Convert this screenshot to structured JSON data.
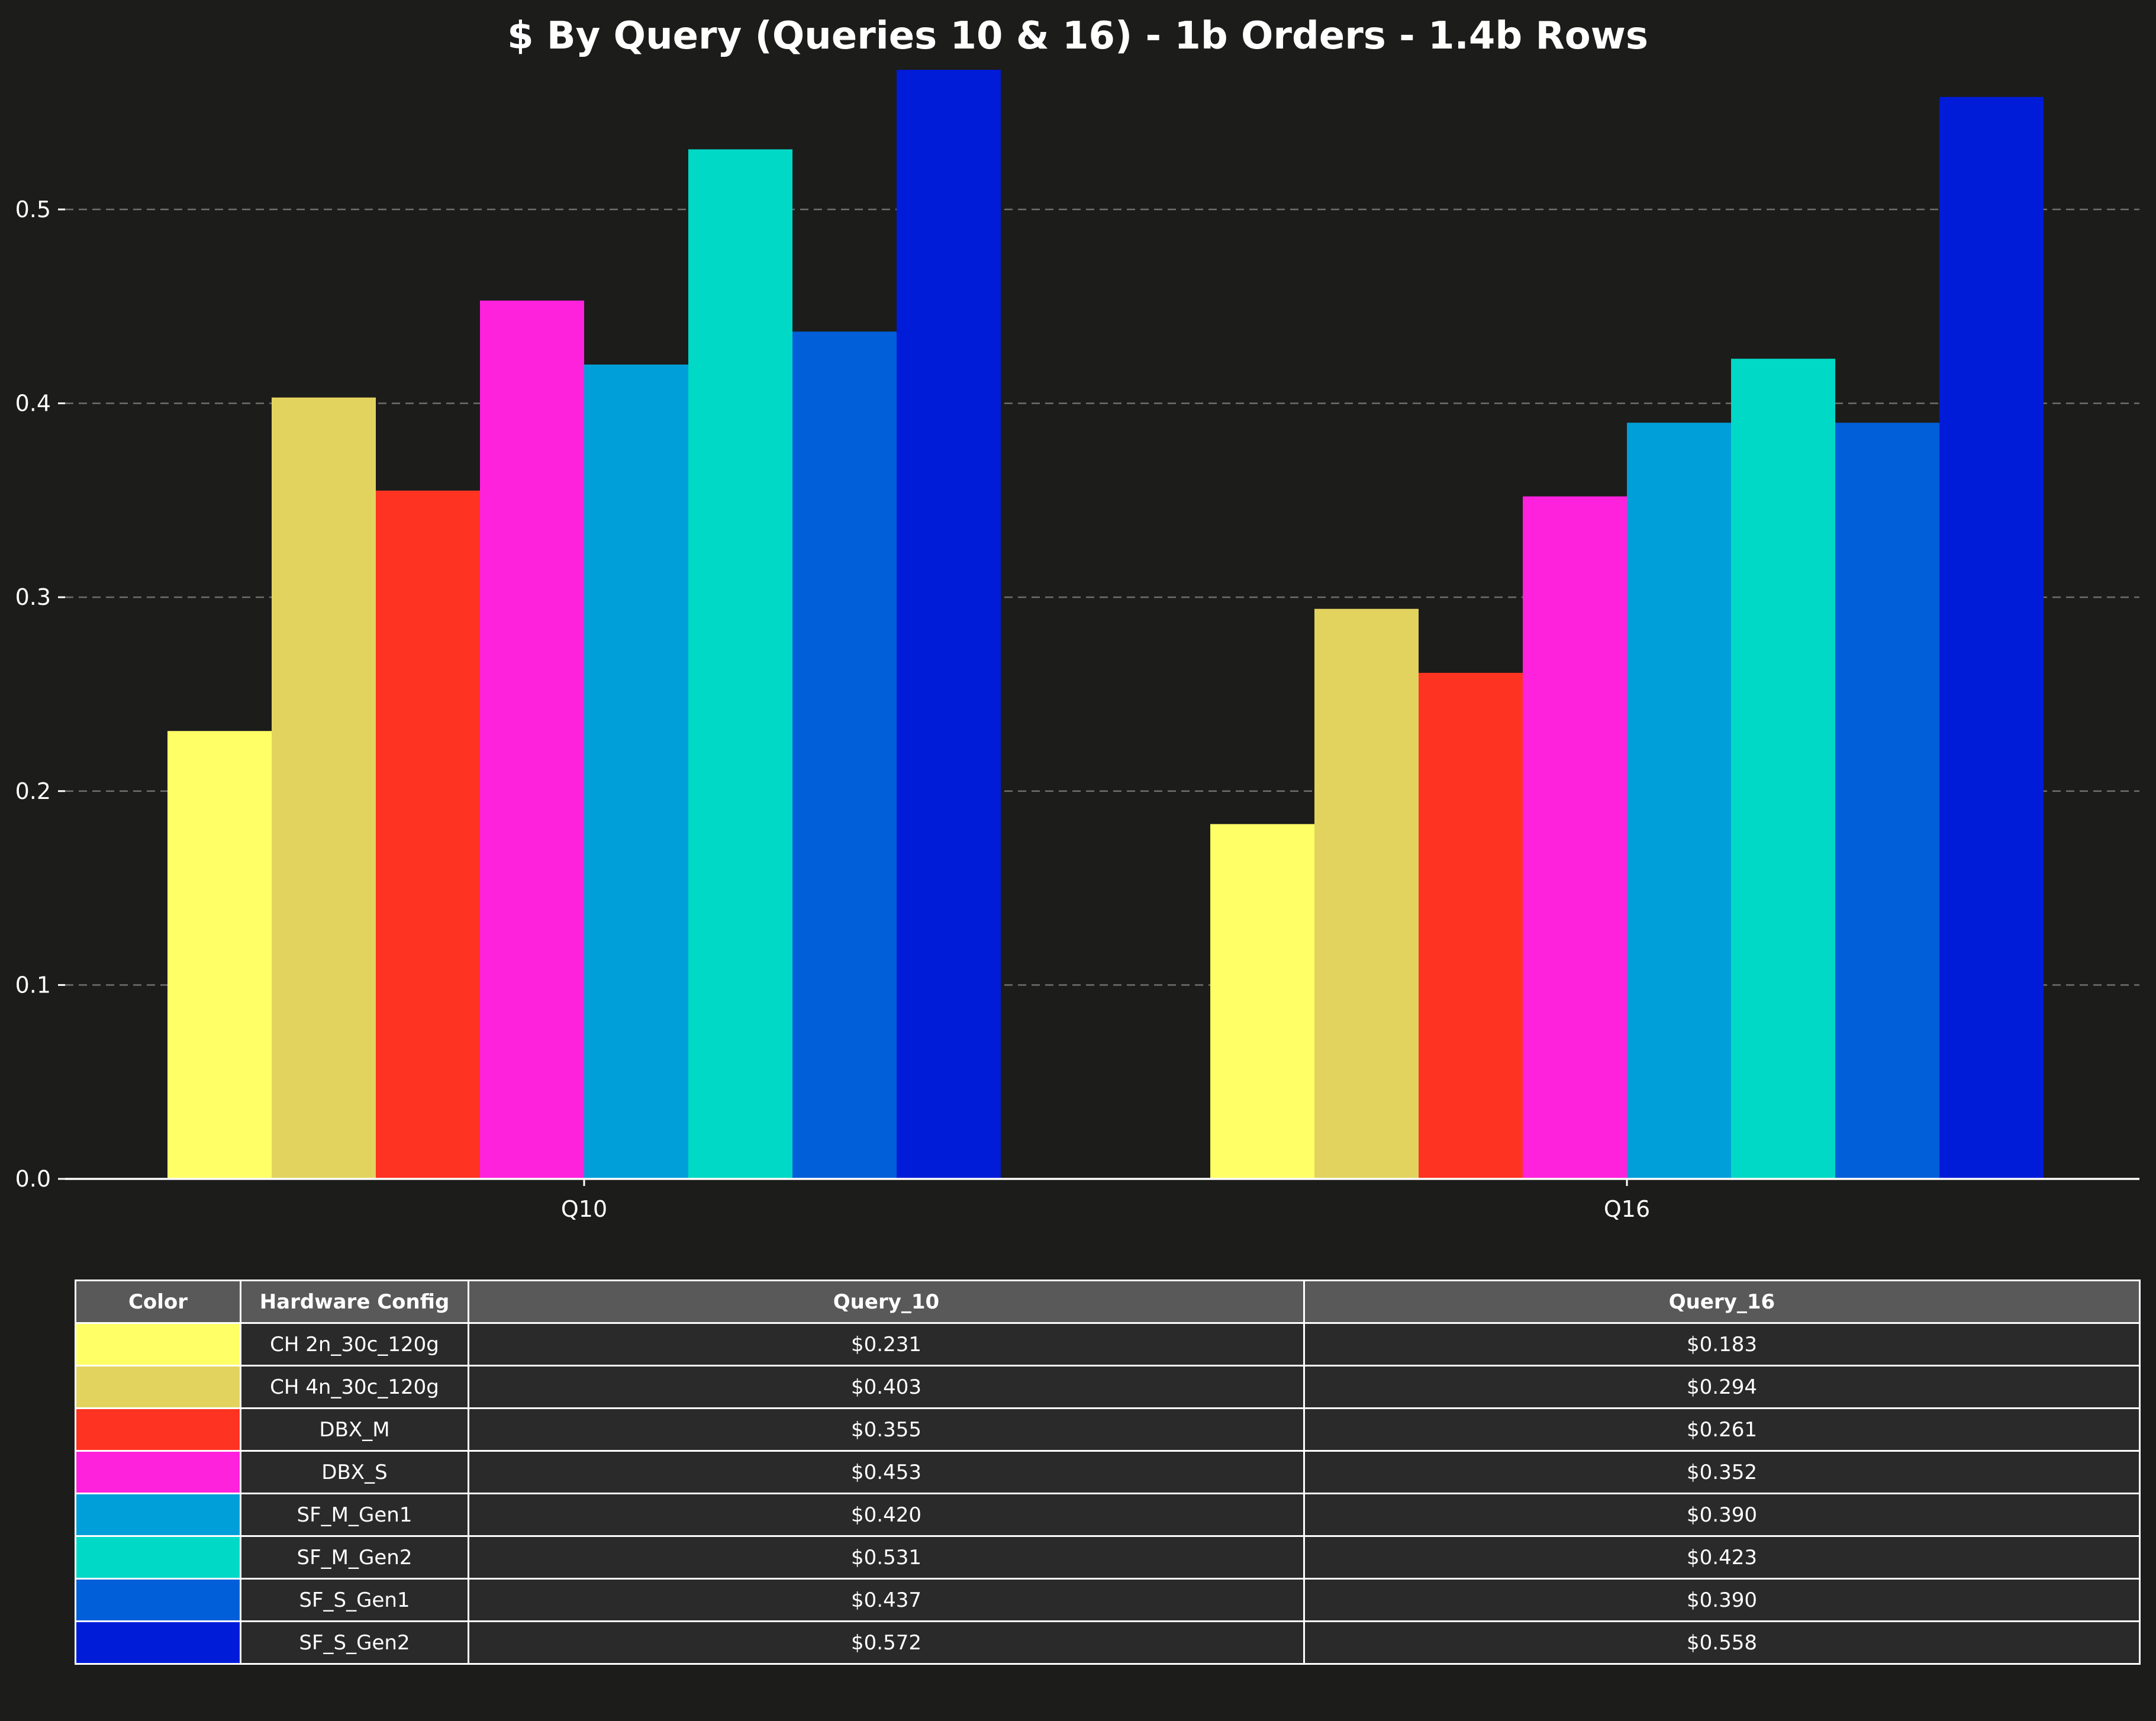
{
  "chart_data": {
    "type": "bar",
    "title": "$ By Query (Queries 10 & 16) - 1b Orders - 1.4b Rows",
    "xlabel": "",
    "ylabel": "",
    "categories": [
      "Q10",
      "Q16"
    ],
    "ylim": [
      0,
      0.572
    ],
    "yticks": [
      "0.0",
      "0.1",
      "0.2",
      "0.3",
      "0.4",
      "0.5"
    ],
    "grid": true,
    "series": [
      {
        "name": "CH 2n_30c_120g",
        "color": "#ffff66",
        "values": [
          0.231,
          0.183
        ],
        "labels": [
          "$0.231",
          "$0.183"
        ]
      },
      {
        "name": "CH 4n_30c_120g",
        "color": "#e2d35f",
        "values": [
          0.403,
          0.294
        ],
        "labels": [
          "$0.403",
          "$0.294"
        ]
      },
      {
        "name": "DBX_M",
        "color": "#ff3322",
        "values": [
          0.355,
          0.261
        ],
        "labels": [
          "$0.355",
          "$0.261"
        ]
      },
      {
        "name": "DBX_S",
        "color": "#ff22dd",
        "values": [
          0.453,
          0.352
        ],
        "labels": [
          "$0.453",
          "$0.352"
        ]
      },
      {
        "name": "SF_M_Gen1",
        "color": "#009fd9",
        "values": [
          0.42,
          0.39
        ],
        "labels": [
          "$0.420",
          "$0.390"
        ]
      },
      {
        "name": "SF_M_Gen2",
        "color": "#00d9c6",
        "values": [
          0.531,
          0.423
        ],
        "labels": [
          "$0.531",
          "$0.423"
        ]
      },
      {
        "name": "SF_S_Gen1",
        "color": "#005fd9",
        "values": [
          0.437,
          0.39
        ],
        "labels": [
          "$0.437",
          "$0.390"
        ]
      },
      {
        "name": "SF_S_Gen2",
        "color": "#001cd9",
        "values": [
          0.572,
          0.558
        ],
        "labels": [
          "$0.572",
          "$0.558"
        ]
      }
    ]
  },
  "table": {
    "headers": [
      "Color",
      "Hardware Config",
      "Query_10",
      "Query_16"
    ]
  }
}
